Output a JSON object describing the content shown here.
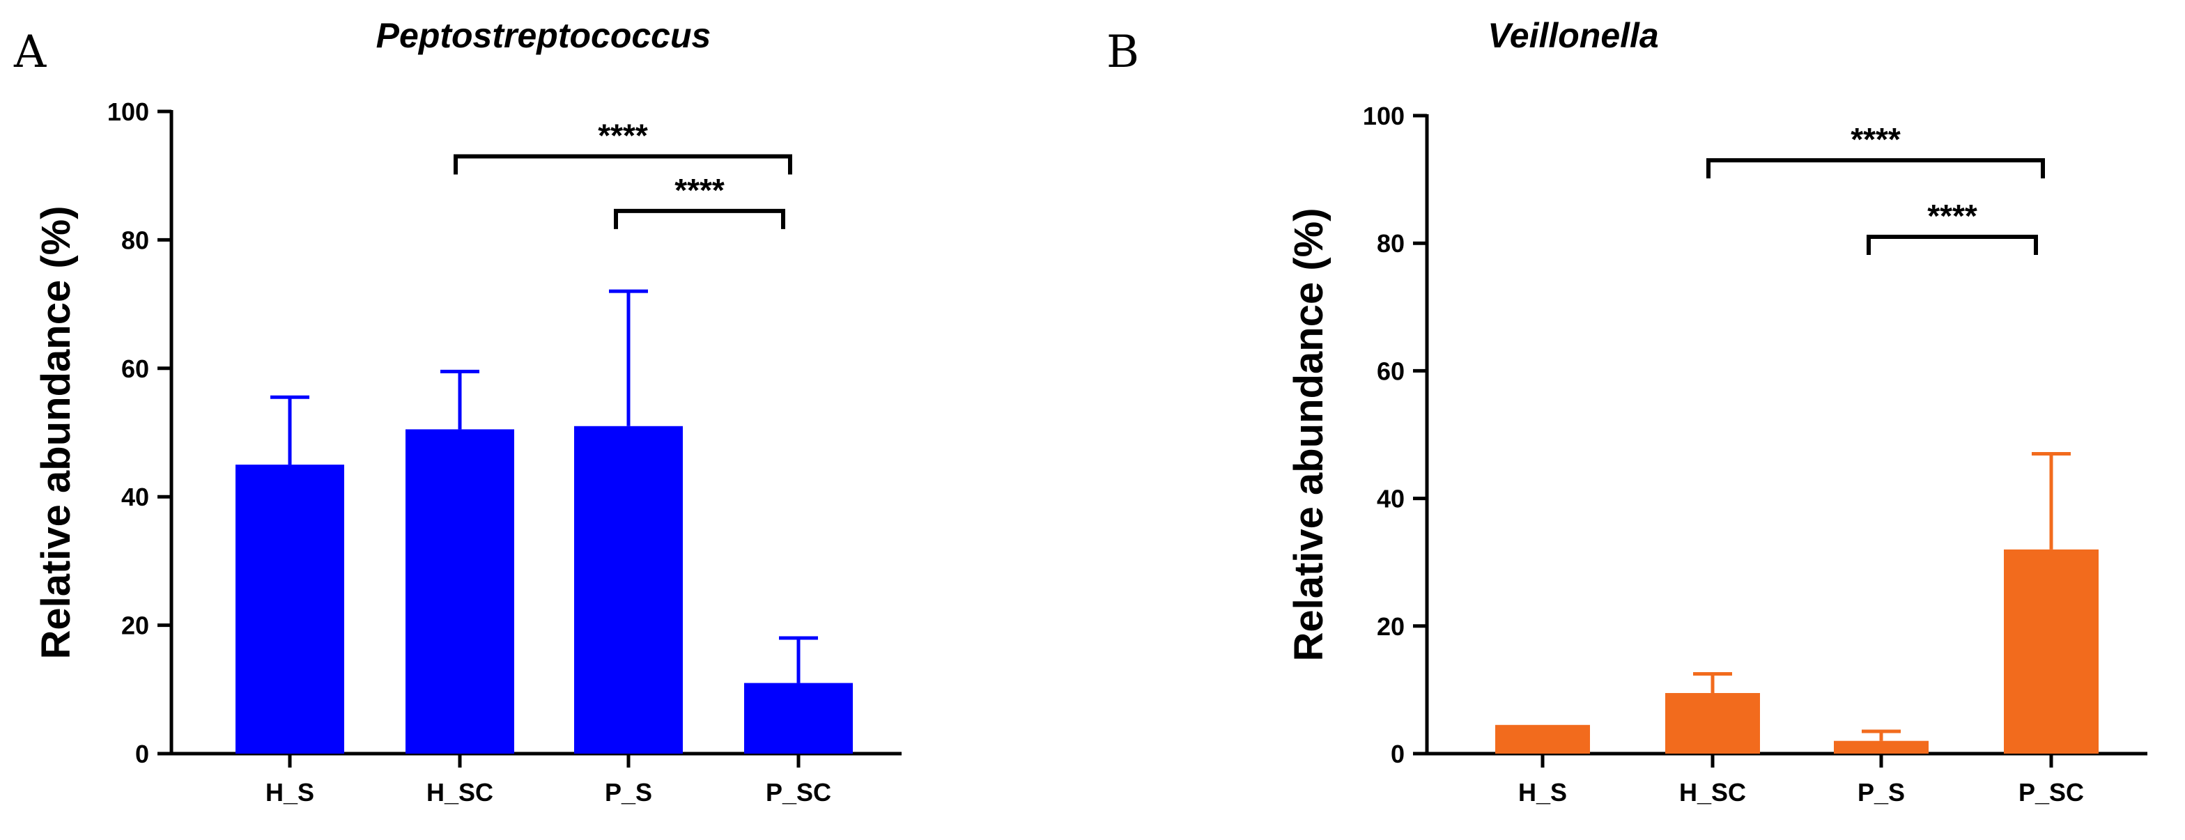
{
  "panels": [
    {
      "letter": "A",
      "title": "Peptostreptococcus",
      "color": "#0000ff",
      "chart_data": {
        "type": "bar",
        "title": "Peptostreptococcus",
        "xlabel": "",
        "ylabel": "Relative abundance (%)",
        "ylim": [
          0,
          100
        ],
        "yticks": [
          "0",
          "20",
          "40",
          "60",
          "80",
          "100"
        ],
        "categories": [
          "H_S",
          "H_SC",
          "P_S",
          "P_SC"
        ],
        "values": [
          45,
          50.5,
          51,
          11
        ],
        "errors_upper": [
          55.5,
          59.5,
          72,
          18
        ],
        "significance": [
          {
            "from": "H_SC",
            "to": "P_SC",
            "label": "****",
            "y": 93
          },
          {
            "from": "P_S",
            "to": "P_SC",
            "label": "****",
            "y": 84.5
          }
        ]
      }
    },
    {
      "letter": "B",
      "title": "Veillonella",
      "color": "#f26b1d",
      "chart_data": {
        "type": "bar",
        "title": "Veillonella",
        "xlabel": "",
        "ylabel": "Relative abundance (%)",
        "ylim": [
          0,
          100
        ],
        "yticks": [
          "0",
          "20",
          "40",
          "60",
          "80",
          "100"
        ],
        "categories": [
          "H_S",
          "H_SC",
          "P_S",
          "P_SC"
        ],
        "values": [
          4.5,
          9.5,
          2,
          32
        ],
        "errors_upper": [
          4.5,
          12.5,
          3.5,
          47
        ],
        "significance": [
          {
            "from": "H_SC",
            "to": "P_SC",
            "label": "****",
            "y": 93
          },
          {
            "from": "P_S",
            "to": "P_SC",
            "label": "****",
            "y": 81
          }
        ]
      }
    }
  ]
}
